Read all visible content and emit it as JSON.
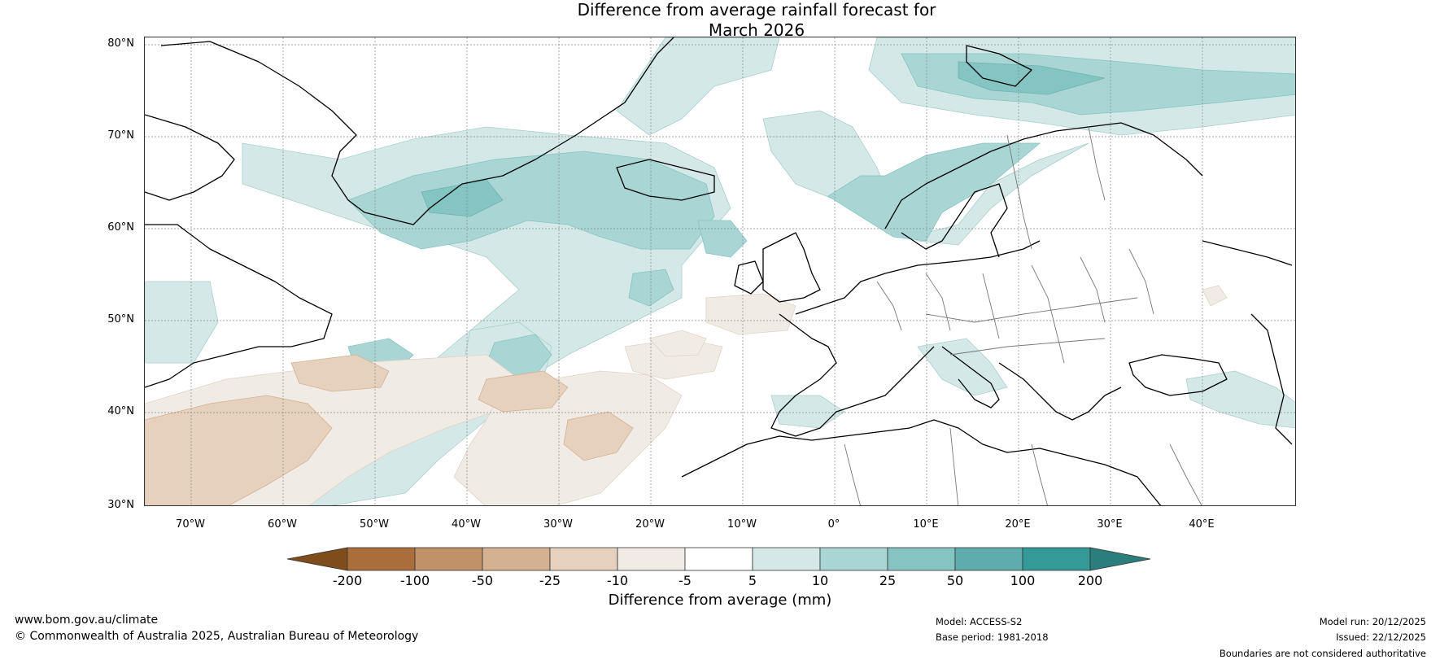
{
  "title": {
    "line1": "Difference from average rainfall forecast for",
    "line2": "March 2026"
  },
  "latitude_labels": [
    "80°N",
    "70°N",
    "60°N",
    "50°N",
    "40°N",
    "30°N"
  ],
  "longitude_labels": [
    "70°W",
    "60°W",
    "50°W",
    "40°W",
    "30°W",
    "20°W",
    "10°W",
    "0°",
    "10°E",
    "20°E",
    "30°E",
    "40°E"
  ],
  "colorbar": {
    "ticks": [
      "-200",
      "-100",
      "-50",
      "-25",
      "-10",
      "-5",
      "5",
      "10",
      "25",
      "50",
      "100",
      "200"
    ],
    "colors": [
      "#7f4d1c",
      "#a96e3b",
      "#c19167",
      "#d4b190",
      "#e5d1bd",
      "#f1ebe5",
      "#ffffff",
      "#d3e8e7",
      "#a9d6d5",
      "#84c4c2",
      "#5eacab",
      "#339a98",
      "#2a7e7c"
    ],
    "label": "Difference from average (mm)"
  },
  "footer": {
    "website": "www.bom.gov.au/climate",
    "copyright": "© Commonwealth of Australia 2025, Australian Bureau of Meteorology",
    "model": "Model: ACCESS-S2",
    "base_period": "Base period: 1981-2018",
    "model_run": "Model run: 20/12/2025",
    "issued": "Issued: 22/12/2025",
    "disclaimer": "Boundaries are not considered authoritative"
  }
}
